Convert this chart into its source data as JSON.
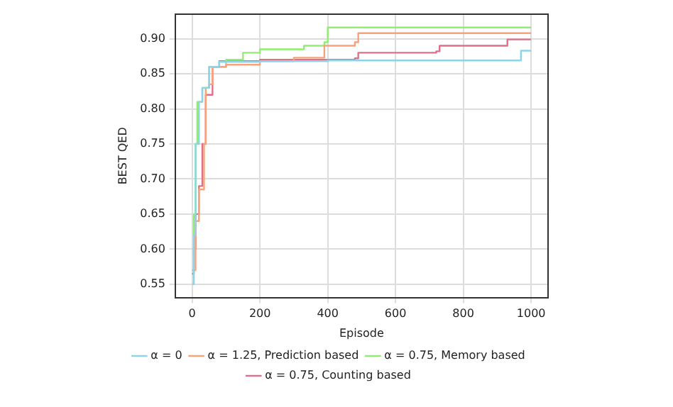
{
  "chart_data": {
    "type": "step",
    "xlabel": "Episode",
    "ylabel": "BEST QED",
    "xlim": [
      -50,
      1050
    ],
    "ylim": [
      0.531,
      0.935
    ],
    "xticks": [
      0,
      200,
      400,
      600,
      800,
      1000
    ],
    "yticks": [
      {
        "value": 0.55,
        "label": "0.55"
      },
      {
        "value": 0.6,
        "label": "0.60"
      },
      {
        "value": 0.65,
        "label": "0.65"
      },
      {
        "value": 0.7,
        "label": "0.70"
      },
      {
        "value": 0.75,
        "label": "0.75"
      },
      {
        "value": 0.8,
        "label": "0.80"
      },
      {
        "value": 0.85,
        "label": "0.85"
      },
      {
        "value": 0.9,
        "label": "0.90"
      }
    ],
    "grid": true,
    "legend": "bottom",
    "series": [
      {
        "name": "α = 0",
        "color": "#8fd3e8",
        "x": [
          0,
          5,
          10,
          20,
          30,
          50,
          80,
          200,
          400,
          970,
          1000
        ],
        "values": [
          0.55,
          0.62,
          0.75,
          0.81,
          0.83,
          0.86,
          0.867,
          0.868,
          0.869,
          0.883,
          0.883
        ]
      },
      {
        "name": "α = 1.25, Prediction based",
        "color": "#f9a27a",
        "x": [
          0,
          10,
          20,
          35,
          40,
          50,
          60,
          100,
          200,
          300,
          390,
          480,
          490,
          1000
        ],
        "values": [
          0.57,
          0.64,
          0.685,
          0.75,
          0.83,
          0.835,
          0.86,
          0.863,
          0.868,
          0.873,
          0.89,
          0.895,
          0.908,
          0.908
        ]
      },
      {
        "name": "α = 0.75, Memory based",
        "color": "#90ee70",
        "x": [
          0,
          5,
          10,
          15,
          30,
          50,
          100,
          150,
          200,
          330,
          390,
          400,
          1000
        ],
        "values": [
          0.6,
          0.65,
          0.75,
          0.81,
          0.83,
          0.86,
          0.87,
          0.88,
          0.885,
          0.89,
          0.895,
          0.916,
          0.916
        ]
      },
      {
        "name": "α = 0.75, Counting based",
        "color": "#e0708a",
        "x": [
          0,
          5,
          10,
          20,
          30,
          40,
          60,
          80,
          200,
          480,
          490,
          720,
          730,
          920,
          930,
          1000
        ],
        "values": [
          0.565,
          0.6,
          0.65,
          0.69,
          0.75,
          0.82,
          0.86,
          0.868,
          0.87,
          0.872,
          0.88,
          0.882,
          0.89,
          0.89,
          0.899,
          0.899
        ]
      }
    ]
  }
}
